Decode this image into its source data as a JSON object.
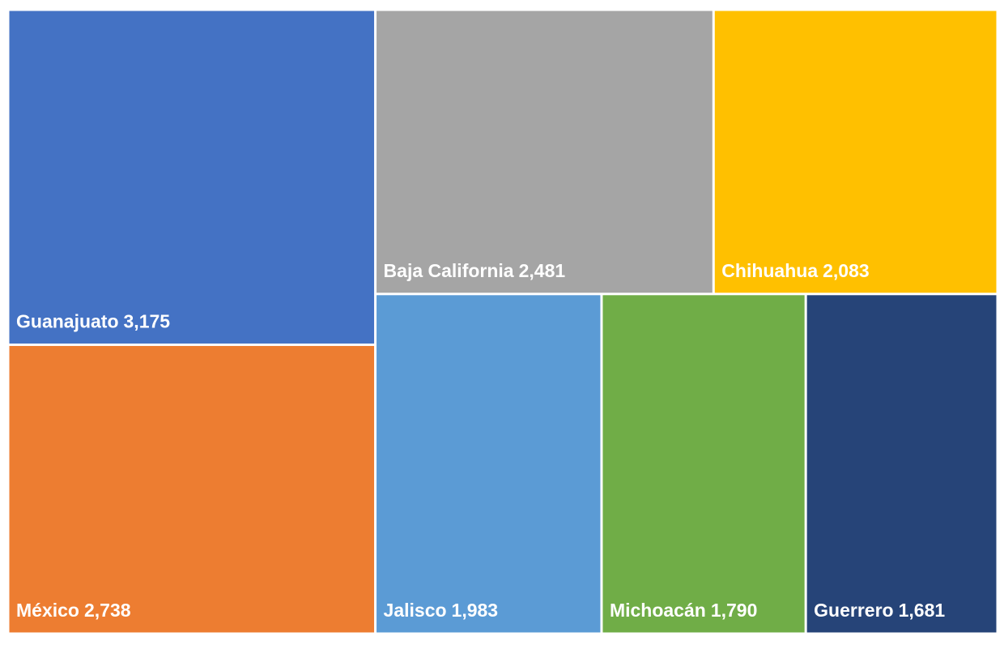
{
  "chart_data": {
    "type": "treemap",
    "categories": [
      "Guanajuato",
      "México",
      "Baja California",
      "Chihuahua",
      "Jalisco",
      "Michoacán",
      "Guerrero"
    ],
    "values": [
      3175,
      2738,
      2481,
      2083,
      1983,
      1790,
      1681
    ],
    "value_labels": [
      "3,175",
      "2,738",
      "2,481",
      "2,083",
      "1,983",
      "1,790",
      "1,681"
    ],
    "colors": [
      "#4472c4",
      "#ed7d31",
      "#a5a5a5",
      "#ffc000",
      "#5b9bd5",
      "#70ad47",
      "#264478"
    ]
  }
}
